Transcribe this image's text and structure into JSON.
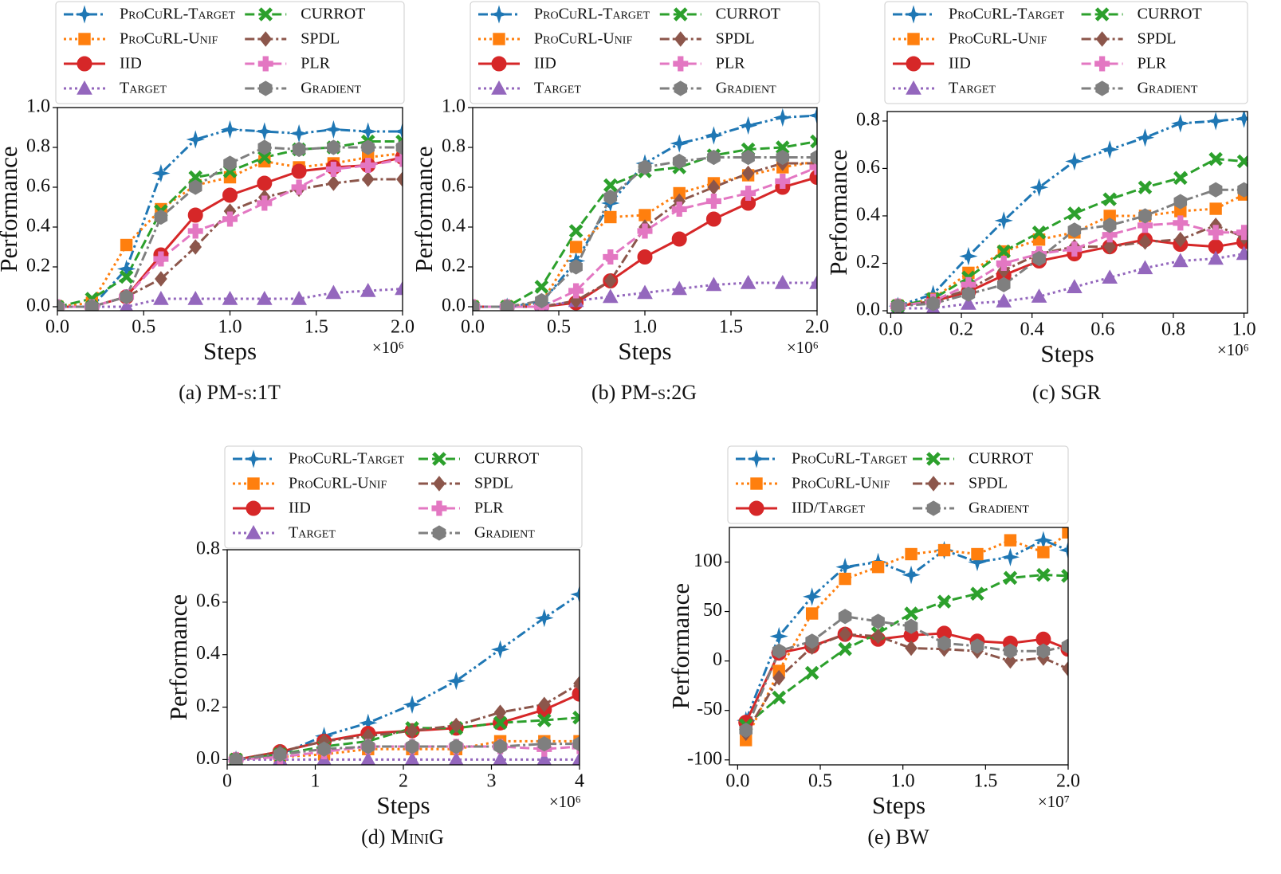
{
  "chart_data": [
    {
      "type": "line",
      "panel": "(a)",
      "title": "PM-s:1T",
      "xlabel": "Steps",
      "ylabel": "Performance",
      "x_multiplier": "×10⁶",
      "xlim": [
        0,
        2.0
      ],
      "xticks": [
        {
          "value": 0,
          "label": "0.0"
        },
        {
          "value": 0.5,
          "label": "0.5"
        },
        {
          "value": 1,
          "label": "1.0"
        },
        {
          "value": 1.5,
          "label": "1.5"
        },
        {
          "value": 2,
          "label": "2.0"
        }
      ],
      "ylim": [
        -0.02,
        1.0
      ],
      "yticks": [
        {
          "value": 0,
          "label": "0.0"
        },
        0.2,
        0.4,
        0.6,
        0.8,
        {
          "value": 1,
          "label": "1.0"
        }
      ],
      "x": [
        0,
        0.2,
        0.4,
        0.6,
        0.8,
        1.0,
        1.2,
        1.4,
        1.6,
        1.8,
        2.0
      ],
      "series": [
        {
          "name": "ProCuRL-Target",
          "color": "#1f77b4",
          "marker": "star",
          "dash": "dashdotdot",
          "values": [
            0,
            0,
            0.19,
            0.67,
            0.84,
            0.89,
            0.88,
            0.87,
            0.89,
            0.88,
            0.88
          ]
        },
        {
          "name": "ProCuRL-Unif",
          "color": "#ff7f0e",
          "marker": "square",
          "dash": "dotted",
          "values": [
            0,
            0.02,
            0.31,
            0.49,
            0.61,
            0.65,
            0.73,
            0.7,
            0.72,
            0.75,
            0.77
          ]
        },
        {
          "name": "IID",
          "color": "#d62728",
          "marker": "circle",
          "dash": "solid",
          "values": [
            0,
            0,
            0.05,
            0.26,
            0.46,
            0.56,
            0.62,
            0.68,
            0.7,
            0.71,
            0.75
          ]
        },
        {
          "name": "Target",
          "color": "#9467bd",
          "marker": "triangle",
          "dash": "dotted",
          "values": [
            0,
            0,
            0,
            0.04,
            0.04,
            0.04,
            0.04,
            0.04,
            0.07,
            0.08,
            0.09
          ]
        },
        {
          "name": "CURROT",
          "color": "#2ca02c",
          "marker": "x",
          "dash": "dashed",
          "values": [
            0,
            0.04,
            0.15,
            0.48,
            0.65,
            0.68,
            0.75,
            0.79,
            0.8,
            0.83,
            0.83
          ]
        },
        {
          "name": "SPDL",
          "color": "#8c564b",
          "marker": "diamond",
          "dash": "dashdot",
          "values": [
            0,
            0,
            0.05,
            0.14,
            0.3,
            0.48,
            0.55,
            0.59,
            0.62,
            0.64,
            0.64
          ]
        },
        {
          "name": "PLR",
          "color": "#e377c2",
          "marker": "plus",
          "dash": "dashed",
          "values": [
            0,
            0,
            0.05,
            0.24,
            0.38,
            0.44,
            0.52,
            0.6,
            0.69,
            0.71,
            0.74
          ]
        },
        {
          "name": "Gradient",
          "color": "#7f7f7f",
          "marker": "hexagon",
          "dash": "dashdot",
          "values": [
            0,
            0,
            0.05,
            0.45,
            0.6,
            0.72,
            0.8,
            0.79,
            0.8,
            0.8,
            0.8
          ]
        }
      ]
    },
    {
      "type": "line",
      "panel": "(b)",
      "title": "PM-s:2G",
      "xlabel": "Steps",
      "ylabel": "Performance",
      "x_multiplier": "×10⁶",
      "xlim": [
        0,
        2.0
      ],
      "xticks": [
        {
          "value": 0,
          "label": "0.0"
        },
        {
          "value": 0.5,
          "label": "0.5"
        },
        {
          "value": 1,
          "label": "1.0"
        },
        {
          "value": 1.5,
          "label": "1.5"
        },
        {
          "value": 2,
          "label": "2.0"
        }
      ],
      "ylim": [
        -0.02,
        1.0
      ],
      "yticks": [
        {
          "value": 0,
          "label": "0.0"
        },
        0.2,
        0.4,
        0.6,
        0.8,
        {
          "value": 1,
          "label": "1.0"
        }
      ],
      "x": [
        0,
        0.2,
        0.4,
        0.6,
        0.8,
        1.0,
        1.2,
        1.4,
        1.6,
        1.8,
        2.0
      ],
      "series": [
        {
          "name": "ProCuRL-Target",
          "color": "#1f77b4",
          "marker": "star",
          "dash": "dashdotdot",
          "values": [
            0,
            0,
            0.02,
            0.23,
            0.52,
            0.72,
            0.82,
            0.86,
            0.91,
            0.95,
            0.96
          ]
        },
        {
          "name": "ProCuRL-Unif",
          "color": "#ff7f0e",
          "marker": "square",
          "dash": "dotted",
          "values": [
            0,
            0,
            0.02,
            0.3,
            0.45,
            0.46,
            0.57,
            0.62,
            0.66,
            0.7,
            0.73
          ]
        },
        {
          "name": "IID",
          "color": "#d62728",
          "marker": "circle",
          "dash": "solid",
          "values": [
            0,
            0,
            0,
            0.02,
            0.13,
            0.25,
            0.34,
            0.44,
            0.52,
            0.6,
            0.65
          ]
        },
        {
          "name": "Target",
          "color": "#9467bd",
          "marker": "triangle",
          "dash": "dotted",
          "values": [
            0,
            0,
            0,
            0.03,
            0.05,
            0.07,
            0.09,
            0.11,
            0.12,
            0.12,
            0.12
          ]
        },
        {
          "name": "CURROT",
          "color": "#2ca02c",
          "marker": "x",
          "dash": "dashed",
          "values": [
            0,
            0,
            0.1,
            0.38,
            0.61,
            0.68,
            0.7,
            0.76,
            0.79,
            0.8,
            0.83
          ]
        },
        {
          "name": "SPDL",
          "color": "#8c564b",
          "marker": "diamond",
          "dash": "dashdot",
          "values": [
            0,
            0,
            0,
            0.03,
            0.13,
            0.4,
            0.53,
            0.6,
            0.67,
            0.72,
            0.72
          ]
        },
        {
          "name": "PLR",
          "color": "#e377c2",
          "marker": "plus",
          "dash": "dashed",
          "values": [
            0,
            0,
            0,
            0.08,
            0.25,
            0.38,
            0.49,
            0.53,
            0.57,
            0.63,
            0.7
          ]
        },
        {
          "name": "Gradient",
          "color": "#7f7f7f",
          "marker": "hexagon",
          "dash": "dashdot",
          "values": [
            0,
            0,
            0.03,
            0.2,
            0.55,
            0.7,
            0.73,
            0.75,
            0.75,
            0.75,
            0.75
          ]
        }
      ]
    },
    {
      "type": "line",
      "panel": "(c)",
      "title": "SGR",
      "xlabel": "Steps",
      "ylabel": "Performance",
      "x_multiplier": "×10⁶",
      "xlim": [
        -0.01,
        1.01
      ],
      "xticks": [
        {
          "value": 0,
          "label": "0.0"
        },
        0.2,
        0.4,
        0.6,
        0.8,
        {
          "value": 1,
          "label": "1.0"
        }
      ],
      "ylim": [
        -0.01,
        0.84
      ],
      "yticks": [
        {
          "value": 0,
          "label": "0.0"
        },
        0.2,
        0.4,
        0.6,
        0.8
      ],
      "x": [
        0.02,
        0.12,
        0.22,
        0.32,
        0.42,
        0.52,
        0.62,
        0.72,
        0.82,
        0.92,
        1.0
      ],
      "series": [
        {
          "name": "ProCuRL-Target",
          "color": "#1f77b4",
          "marker": "star",
          "dash": "dashdotdot",
          "values": [
            0.02,
            0.07,
            0.23,
            0.38,
            0.52,
            0.63,
            0.68,
            0.73,
            0.79,
            0.8,
            0.81
          ]
        },
        {
          "name": "ProCuRL-Unif",
          "color": "#ff7f0e",
          "marker": "square",
          "dash": "dotted",
          "values": [
            0.02,
            0.05,
            0.16,
            0.25,
            0.3,
            0.33,
            0.4,
            0.4,
            0.42,
            0.43,
            0.49
          ]
        },
        {
          "name": "IID",
          "color": "#d62728",
          "marker": "circle",
          "dash": "solid",
          "values": [
            0.02,
            0.04,
            0.08,
            0.15,
            0.21,
            0.24,
            0.27,
            0.3,
            0.28,
            0.27,
            0.29
          ]
        },
        {
          "name": "Target",
          "color": "#9467bd",
          "marker": "triangle",
          "dash": "dotted",
          "values": [
            0.01,
            0.01,
            0.03,
            0.04,
            0.06,
            0.1,
            0.14,
            0.18,
            0.21,
            0.22,
            0.24
          ]
        },
        {
          "name": "CURROT",
          "color": "#2ca02c",
          "marker": "x",
          "dash": "dashed",
          "values": [
            0.02,
            0.05,
            0.14,
            0.25,
            0.33,
            0.41,
            0.47,
            0.52,
            0.56,
            0.64,
            0.63
          ]
        },
        {
          "name": "SPDL",
          "color": "#8c564b",
          "marker": "diamond",
          "dash": "dashdot",
          "values": [
            0.02,
            0.04,
            0.09,
            0.17,
            0.24,
            0.27,
            0.27,
            0.29,
            0.3,
            0.36,
            0.31
          ]
        },
        {
          "name": "PLR",
          "color": "#e377c2",
          "marker": "plus",
          "dash": "dashed",
          "values": [
            0.02,
            0.04,
            0.11,
            0.2,
            0.24,
            0.26,
            0.32,
            0.36,
            0.37,
            0.33,
            0.33
          ]
        },
        {
          "name": "Gradient",
          "color": "#7f7f7f",
          "marker": "hexagon",
          "dash": "dashdot",
          "values": [
            0.02,
            0.03,
            0.07,
            0.11,
            0.22,
            0.34,
            0.36,
            0.4,
            0.46,
            0.51,
            0.51
          ]
        }
      ]
    },
    {
      "type": "line",
      "panel": "(d)",
      "title": "MiniG",
      "xlabel": "Steps",
      "ylabel": "Performance",
      "x_multiplier": "×10⁶",
      "xlim": [
        0,
        4
      ],
      "xticks": [
        0,
        1,
        2,
        3,
        4
      ],
      "ylim": [
        -0.02,
        0.8
      ],
      "yticks": [
        {
          "value": 0,
          "label": "0.0"
        },
        0.2,
        0.4,
        0.6,
        0.8
      ],
      "x": [
        0.1,
        0.6,
        1.1,
        1.6,
        2.1,
        2.6,
        3.1,
        3.6,
        4.0
      ],
      "series": [
        {
          "name": "ProCuRL-Target",
          "color": "#1f77b4",
          "marker": "star",
          "dash": "dashdotdot",
          "values": [
            0,
            0.02,
            0.09,
            0.14,
            0.21,
            0.3,
            0.42,
            0.54,
            0.63
          ]
        },
        {
          "name": "ProCuRL-Unif",
          "color": "#ff7f0e",
          "marker": "square",
          "dash": "dotted",
          "values": [
            0,
            0.01,
            0.02,
            0.04,
            0.04,
            0.04,
            0.07,
            0.07,
            0.07
          ]
        },
        {
          "name": "IID",
          "color": "#d62728",
          "marker": "circle",
          "dash": "solid",
          "values": [
            0,
            0.03,
            0.07,
            0.1,
            0.11,
            0.12,
            0.14,
            0.19,
            0.25
          ]
        },
        {
          "name": "Target",
          "color": "#9467bd",
          "marker": "triangle",
          "dash": "dotted",
          "values": [
            0,
            0,
            0,
            0,
            0,
            0,
            0,
            0,
            0
          ]
        },
        {
          "name": "CURROT",
          "color": "#2ca02c",
          "marker": "x",
          "dash": "dashed",
          "values": [
            0,
            0.02,
            0.05,
            0.07,
            0.12,
            0.12,
            0.14,
            0.15,
            0.16
          ]
        },
        {
          "name": "SPDL",
          "color": "#8c564b",
          "marker": "diamond",
          "dash": "dashdot",
          "values": [
            0,
            0.03,
            0.07,
            0.09,
            0.11,
            0.13,
            0.18,
            0.21,
            0.29
          ]
        },
        {
          "name": "PLR",
          "color": "#e377c2",
          "marker": "plus",
          "dash": "dashed",
          "values": [
            0,
            0.01,
            0.03,
            0.05,
            0.05,
            0.05,
            0.05,
            0.04,
            0.05
          ]
        },
        {
          "name": "Gradient",
          "color": "#7f7f7f",
          "marker": "hexagon",
          "dash": "dashdot",
          "values": [
            0,
            0.02,
            0.04,
            0.05,
            0.05,
            0.05,
            0.05,
            0.06,
            0.06
          ]
        }
      ]
    },
    {
      "type": "line",
      "panel": "(e)",
      "title": "BW",
      "xlabel": "Steps",
      "ylabel": "Performance",
      "x_multiplier": "×10⁷",
      "xlim": [
        -0.05,
        2.0
      ],
      "xticks": [
        {
          "value": 0,
          "label": "0.0"
        },
        0.5,
        {
          "value": 1,
          "label": "1.0"
        },
        1.5,
        {
          "value": 2,
          "label": "2.0"
        }
      ],
      "ylim": [
        -105,
        135
      ],
      "yticks": [
        -100,
        -50,
        0,
        50,
        100
      ],
      "x": [
        0.05,
        0.25,
        0.45,
        0.65,
        0.85,
        1.05,
        1.25,
        1.45,
        1.65,
        1.85,
        2.0
      ],
      "series": [
        {
          "name": "ProCuRL-Target",
          "color": "#1f77b4",
          "marker": "star",
          "dash": "dashdotdot",
          "values": [
            -60,
            25,
            65,
            95,
            100,
            87,
            112,
            100,
            105,
            122,
            112
          ]
        },
        {
          "name": "ProCuRL-Unif",
          "color": "#ff7f0e",
          "marker": "square",
          "dash": "dotted",
          "values": [
            -80,
            -10,
            48,
            83,
            95,
            108,
            112,
            108,
            122,
            110,
            130
          ]
        },
        {
          "name": "IID/Target",
          "color": "#d62728",
          "marker": "circle",
          "dash": "solid",
          "values": [
            -62,
            8,
            15,
            27,
            22,
            26,
            28,
            20,
            18,
            22,
            12
          ]
        },
        {
          "name": "CURROT",
          "color": "#2ca02c",
          "marker": "x",
          "dash": "dashed",
          "values": [
            -65,
            -37,
            -12,
            12,
            28,
            48,
            60,
            68,
            84,
            87,
            86
          ]
        },
        {
          "name": "SPDL",
          "color": "#8c564b",
          "marker": "diamond",
          "dash": "dashdot",
          "values": [
            -73,
            -17,
            14,
            27,
            25,
            13,
            12,
            10,
            0,
            3,
            -8
          ]
        },
        {
          "name": "Gradient",
          "color": "#7f7f7f",
          "marker": "hexagon",
          "dash": "dashdot",
          "values": [
            -70,
            10,
            20,
            45,
            40,
            35,
            18,
            15,
            10,
            10,
            15
          ]
        }
      ]
    }
  ]
}
